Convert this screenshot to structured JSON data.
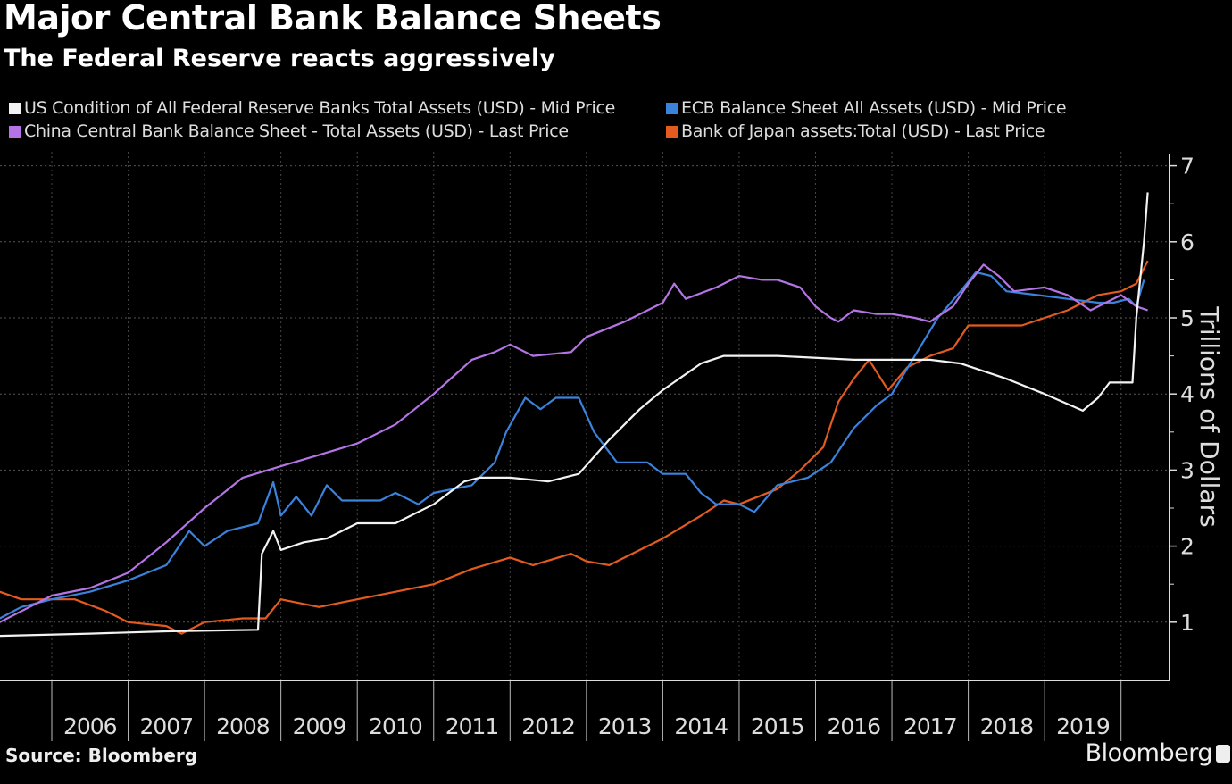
{
  "chart_data": {
    "type": "line",
    "title": "Major Central Bank Balance Sheets",
    "subtitle": "The Federal Reserve reacts aggressively",
    "ylabel": "Trillions of Dollars",
    "xlabel": "",
    "ylim": [
      0,
      7
    ],
    "xlim": [
      2005.32,
      2020.65
    ],
    "y_ticks": [
      "1",
      "2",
      "3",
      "4",
      "5",
      "6",
      "7"
    ],
    "x_ticks": [
      "2006",
      "2007",
      "2008",
      "2009",
      "2010",
      "2011",
      "2012",
      "2013",
      "2014",
      "2015",
      "2016",
      "2017",
      "2018",
      "2019"
    ],
    "grid": true,
    "legend_position": "top-left",
    "series": [
      {
        "name": "US Condition of All Federal Reserve Banks Total Assets (USD) - Mid Price",
        "color": "#f2f2f2",
        "points": [
          [
            2005.32,
            0.82
          ],
          [
            2006.5,
            0.85
          ],
          [
            2007.5,
            0.88
          ],
          [
            2008.7,
            0.9
          ],
          [
            2008.75,
            1.9
          ],
          [
            2008.9,
            2.2
          ],
          [
            2009.0,
            1.95
          ],
          [
            2009.3,
            2.05
          ],
          [
            2009.6,
            2.1
          ],
          [
            2010.0,
            2.3
          ],
          [
            2010.5,
            2.3
          ],
          [
            2011.0,
            2.55
          ],
          [
            2011.4,
            2.85
          ],
          [
            2011.6,
            2.9
          ],
          [
            2012.0,
            2.9
          ],
          [
            2012.5,
            2.85
          ],
          [
            2012.9,
            2.95
          ],
          [
            2013.3,
            3.4
          ],
          [
            2013.7,
            3.8
          ],
          [
            2014.0,
            4.05
          ],
          [
            2014.5,
            4.4
          ],
          [
            2014.8,
            4.5
          ],
          [
            2015.5,
            4.5
          ],
          [
            2016.5,
            4.45
          ],
          [
            2017.5,
            4.45
          ],
          [
            2017.9,
            4.4
          ],
          [
            2018.5,
            4.2
          ],
          [
            2019.0,
            4.0
          ],
          [
            2019.5,
            3.78
          ],
          [
            2019.7,
            3.95
          ],
          [
            2019.85,
            4.15
          ],
          [
            2020.15,
            4.15
          ],
          [
            2020.2,
            5.0
          ],
          [
            2020.3,
            6.0
          ],
          [
            2020.35,
            6.65
          ]
        ]
      },
      {
        "name": "ECB Balance Sheet All Assets (USD) - Mid Price",
        "color": "#3b82db",
        "points": [
          [
            2005.32,
            1.05
          ],
          [
            2005.6,
            1.2
          ],
          [
            2006.0,
            1.3
          ],
          [
            2006.5,
            1.4
          ],
          [
            2007.0,
            1.55
          ],
          [
            2007.5,
            1.75
          ],
          [
            2007.8,
            2.2
          ],
          [
            2008.0,
            2.0
          ],
          [
            2008.3,
            2.2
          ],
          [
            2008.7,
            2.3
          ],
          [
            2008.9,
            2.84
          ],
          [
            2009.0,
            2.4
          ],
          [
            2009.2,
            2.65
          ],
          [
            2009.4,
            2.4
          ],
          [
            2009.6,
            2.8
          ],
          [
            2009.8,
            2.6
          ],
          [
            2010.3,
            2.6
          ],
          [
            2010.5,
            2.7
          ],
          [
            2010.8,
            2.55
          ],
          [
            2011.0,
            2.7
          ],
          [
            2011.5,
            2.8
          ],
          [
            2011.8,
            3.1
          ],
          [
            2011.95,
            3.5
          ],
          [
            2012.2,
            3.95
          ],
          [
            2012.4,
            3.8
          ],
          [
            2012.6,
            3.95
          ],
          [
            2012.9,
            3.95
          ],
          [
            2013.1,
            3.5
          ],
          [
            2013.4,
            3.1
          ],
          [
            2013.8,
            3.1
          ],
          [
            2014.0,
            2.95
          ],
          [
            2014.3,
            2.95
          ],
          [
            2014.5,
            2.7
          ],
          [
            2014.7,
            2.55
          ],
          [
            2015.0,
            2.55
          ],
          [
            2015.2,
            2.45
          ],
          [
            2015.5,
            2.8
          ],
          [
            2015.9,
            2.9
          ],
          [
            2016.2,
            3.1
          ],
          [
            2016.5,
            3.55
          ],
          [
            2016.8,
            3.85
          ],
          [
            2017.0,
            4.0
          ],
          [
            2017.3,
            4.5
          ],
          [
            2017.6,
            5.0
          ],
          [
            2017.9,
            5.35
          ],
          [
            2018.1,
            5.6
          ],
          [
            2018.3,
            5.55
          ],
          [
            2018.5,
            5.35
          ],
          [
            2018.9,
            5.3
          ],
          [
            2019.3,
            5.25
          ],
          [
            2019.7,
            5.2
          ],
          [
            2019.9,
            5.2
          ],
          [
            2020.1,
            5.25
          ],
          [
            2020.2,
            5.15
          ],
          [
            2020.3,
            5.5
          ]
        ]
      },
      {
        "name": "China Central Bank Balance Sheet - Total Assets (USD) - Last Price",
        "color": "#b574e6",
        "points": [
          [
            2005.32,
            1.0
          ],
          [
            2006.0,
            1.35
          ],
          [
            2006.5,
            1.45
          ],
          [
            2007.0,
            1.65
          ],
          [
            2007.5,
            2.05
          ],
          [
            2008.0,
            2.5
          ],
          [
            2008.5,
            2.9
          ],
          [
            2009.0,
            3.05
          ],
          [
            2009.5,
            3.2
          ],
          [
            2010.0,
            3.35
          ],
          [
            2010.5,
            3.6
          ],
          [
            2011.0,
            4.0
          ],
          [
            2011.5,
            4.45
          ],
          [
            2011.8,
            4.55
          ],
          [
            2012.0,
            4.65
          ],
          [
            2012.3,
            4.5
          ],
          [
            2012.8,
            4.55
          ],
          [
            2013.0,
            4.75
          ],
          [
            2013.5,
            4.95
          ],
          [
            2014.0,
            5.2
          ],
          [
            2014.15,
            5.45
          ],
          [
            2014.3,
            5.25
          ],
          [
            2014.7,
            5.4
          ],
          [
            2015.0,
            5.55
          ],
          [
            2015.3,
            5.5
          ],
          [
            2015.5,
            5.5
          ],
          [
            2015.8,
            5.4
          ],
          [
            2016.0,
            5.15
          ],
          [
            2016.2,
            5.0
          ],
          [
            2016.3,
            4.95
          ],
          [
            2016.5,
            5.1
          ],
          [
            2016.8,
            5.05
          ],
          [
            2017.0,
            5.05
          ],
          [
            2017.3,
            5.0
          ],
          [
            2017.5,
            4.95
          ],
          [
            2017.8,
            5.15
          ],
          [
            2018.0,
            5.45
          ],
          [
            2018.2,
            5.7
          ],
          [
            2018.4,
            5.55
          ],
          [
            2018.6,
            5.35
          ],
          [
            2019.0,
            5.4
          ],
          [
            2019.3,
            5.3
          ],
          [
            2019.6,
            5.1
          ],
          [
            2019.8,
            5.2
          ],
          [
            2020.0,
            5.3
          ],
          [
            2020.2,
            5.15
          ],
          [
            2020.35,
            5.1
          ]
        ]
      },
      {
        "name": "Bank of Japan assets:Total (USD) - Last Price",
        "color": "#e35b1f",
        "points": [
          [
            2005.32,
            1.4
          ],
          [
            2005.6,
            1.3
          ],
          [
            2006.0,
            1.3
          ],
          [
            2006.3,
            1.3
          ],
          [
            2006.7,
            1.15
          ],
          [
            2007.0,
            1.0
          ],
          [
            2007.5,
            0.95
          ],
          [
            2007.7,
            0.85
          ],
          [
            2008.0,
            1.0
          ],
          [
            2008.5,
            1.05
          ],
          [
            2008.8,
            1.05
          ],
          [
            2009.0,
            1.3
          ],
          [
            2009.5,
            1.2
          ],
          [
            2010.0,
            1.3
          ],
          [
            2010.5,
            1.4
          ],
          [
            2011.0,
            1.5
          ],
          [
            2011.5,
            1.7
          ],
          [
            2012.0,
            1.85
          ],
          [
            2012.3,
            1.75
          ],
          [
            2012.8,
            1.9
          ],
          [
            2013.0,
            1.8
          ],
          [
            2013.3,
            1.75
          ],
          [
            2013.7,
            1.95
          ],
          [
            2014.0,
            2.1
          ],
          [
            2014.5,
            2.4
          ],
          [
            2014.8,
            2.6
          ],
          [
            2015.0,
            2.55
          ],
          [
            2015.5,
            2.75
          ],
          [
            2015.8,
            3.0
          ],
          [
            2016.1,
            3.3
          ],
          [
            2016.3,
            3.9
          ],
          [
            2016.5,
            4.2
          ],
          [
            2016.7,
            4.45
          ],
          [
            2016.95,
            4.05
          ],
          [
            2017.2,
            4.35
          ],
          [
            2017.5,
            4.5
          ],
          [
            2017.8,
            4.6
          ],
          [
            2018.0,
            4.9
          ],
          [
            2018.3,
            4.9
          ],
          [
            2018.7,
            4.9
          ],
          [
            2019.0,
            5.0
          ],
          [
            2019.3,
            5.1
          ],
          [
            2019.7,
            5.3
          ],
          [
            2020.0,
            5.35
          ],
          [
            2020.2,
            5.45
          ],
          [
            2020.35,
            5.75
          ]
        ]
      }
    ]
  },
  "footer": {
    "source": "Source: Bloomberg",
    "brand": "Bloomberg"
  }
}
